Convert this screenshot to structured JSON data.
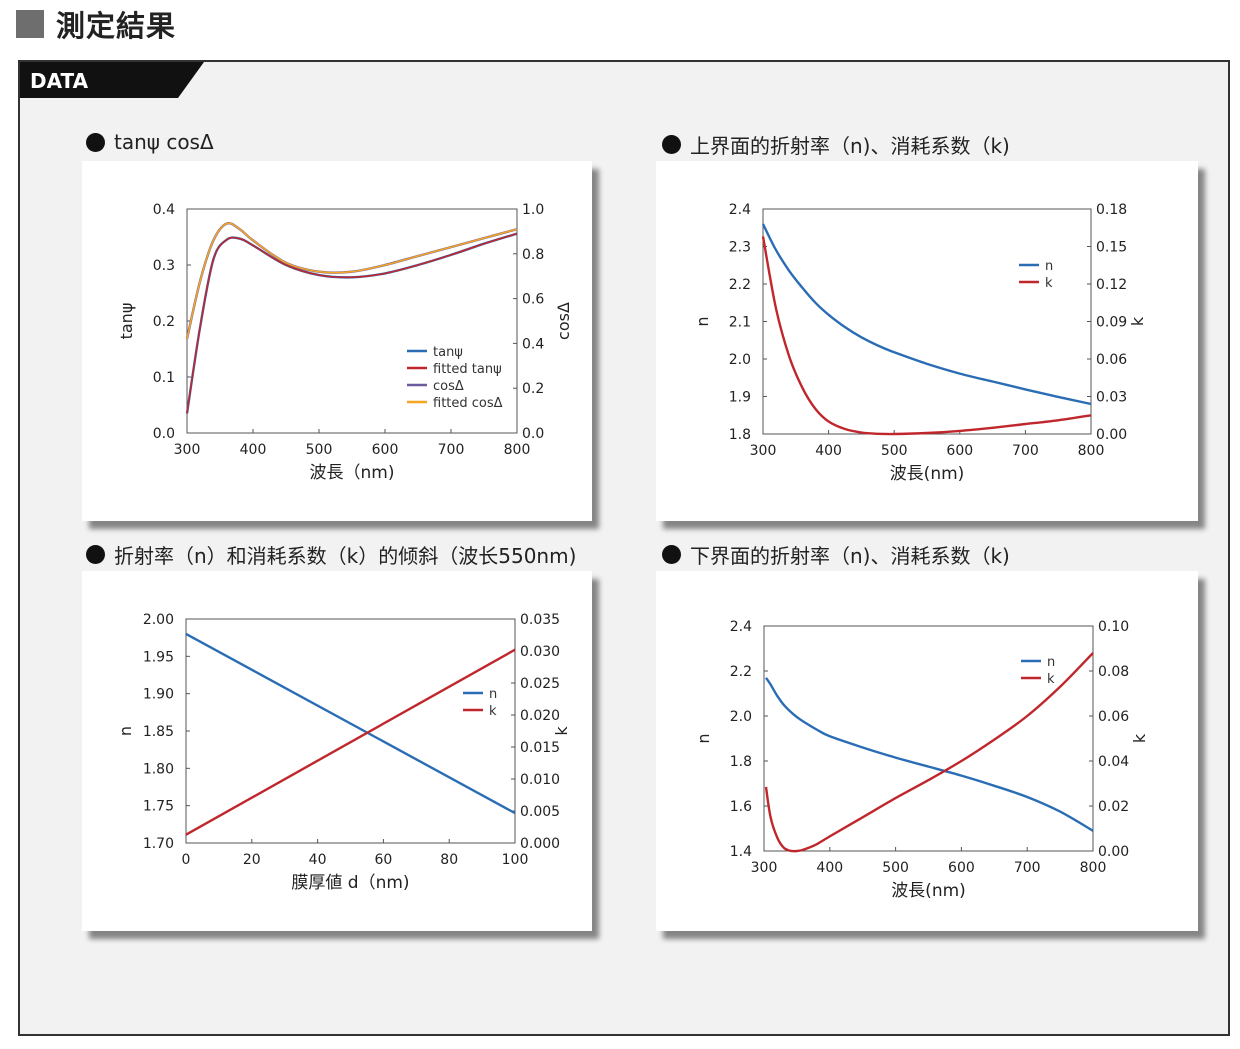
{
  "page": {
    "title": "測定結果",
    "frame_label": "DATA"
  },
  "colors": {
    "blue": "#2a6db5",
    "red": "#c0272d",
    "purple": "#6b5b9e",
    "orange": "#f5a623",
    "tab": "#111111"
  },
  "panels": [
    {
      "title": "tanψ cosΔ"
    },
    {
      "title": "上界面的折射率（n)、消耗系数（k)"
    },
    {
      "title": "折射率（n）和消耗系数（k）的倾斜（波长550nm)"
    },
    {
      "title": "下界面的折射率（n)、消耗系数（k)"
    }
  ],
  "chart_data": [
    {
      "type": "line",
      "xlabel": "波長（nm)",
      "ylabel_left": "tanψ",
      "ylabel_right": "cosΔ",
      "xlim": [
        300,
        800
      ],
      "ylim_left": [
        0,
        0.4
      ],
      "ylim_right": [
        0,
        1.0
      ],
      "xticks": [
        "300",
        "400",
        "500",
        "600",
        "700",
        "800"
      ],
      "yticks_left": [
        "0.0",
        "0.1",
        "0.2",
        "0.3",
        "0.4"
      ],
      "yticks_right": [
        "0.0",
        "0.2",
        "0.4",
        "0.6",
        "0.8",
        "1.0"
      ],
      "legend_position": "lower-right",
      "x": [
        300,
        320,
        340,
        360,
        380,
        400,
        450,
        500,
        550,
        600,
        650,
        700,
        750,
        800
      ],
      "series": [
        {
          "name": "tanψ",
          "axis": "left",
          "color": "#2a6db5",
          "values": [
            0.035,
            0.19,
            0.31,
            0.345,
            0.347,
            0.335,
            0.3,
            0.282,
            0.278,
            0.285,
            0.3,
            0.318,
            0.338,
            0.356
          ]
        },
        {
          "name": "fitted tanψ",
          "axis": "left",
          "color": "#c0272d",
          "values": [
            0.035,
            0.19,
            0.31,
            0.345,
            0.347,
            0.335,
            0.3,
            0.282,
            0.278,
            0.285,
            0.3,
            0.318,
            0.338,
            0.356
          ]
        },
        {
          "name": "cosΔ",
          "axis": "right",
          "color": "#6b5b9e",
          "values": [
            0.42,
            0.68,
            0.86,
            0.935,
            0.91,
            0.86,
            0.76,
            0.72,
            0.72,
            0.75,
            0.79,
            0.83,
            0.87,
            0.91
          ]
        },
        {
          "name": "fitted cosΔ",
          "axis": "right",
          "color": "#f5a623",
          "values": [
            0.42,
            0.68,
            0.86,
            0.935,
            0.91,
            0.86,
            0.76,
            0.72,
            0.72,
            0.75,
            0.79,
            0.83,
            0.87,
            0.91
          ]
        }
      ]
    },
    {
      "type": "line",
      "xlabel": "波長(nm)",
      "ylabel_left": "n",
      "ylabel_right": "k",
      "xlim": [
        300,
        800
      ],
      "ylim_left": [
        1.8,
        2.4
      ],
      "ylim_right": [
        0,
        0.18
      ],
      "xticks": [
        "300",
        "400",
        "500",
        "600",
        "700",
        "800"
      ],
      "yticks_left": [
        "1.8",
        "1.9",
        "2.0",
        "2.1",
        "2.2",
        "2.3",
        "2.4"
      ],
      "yticks_right": [
        "0.00",
        "0.03",
        "0.06",
        "0.09",
        "0.12",
        "0.15",
        "0.18"
      ],
      "legend_position": "top-right",
      "x": [
        300,
        320,
        340,
        360,
        380,
        400,
        425,
        450,
        475,
        500,
        550,
        600,
        650,
        700,
        750,
        800
      ],
      "series": [
        {
          "name": "n",
          "axis": "left",
          "color": "#2a6db5",
          "values": [
            2.36,
            2.29,
            2.235,
            2.19,
            2.15,
            2.118,
            2.085,
            2.058,
            2.036,
            2.018,
            1.987,
            1.961,
            1.94,
            1.919,
            1.899,
            1.88
          ]
        },
        {
          "name": "k",
          "axis": "right",
          "color": "#c0272d",
          "values": [
            0.158,
            0.1,
            0.062,
            0.037,
            0.02,
            0.01,
            0.004,
            0.0012,
            0.0002,
            0.0,
            0.0008,
            0.0025,
            0.005,
            0.008,
            0.011,
            0.015
          ]
        }
      ]
    },
    {
      "type": "line",
      "xlabel": "膜厚値 d（nm)",
      "ylabel_left": "n",
      "ylabel_right": "k",
      "xlim": [
        0,
        100
      ],
      "ylim_left": [
        1.7,
        2.0
      ],
      "ylim_right": [
        0,
        0.035
      ],
      "xticks": [
        "0",
        "20",
        "40",
        "60",
        "80",
        "100"
      ],
      "yticks_left": [
        "1.70",
        "1.75",
        "1.80",
        "1.85",
        "1.90",
        "1.95",
        "2.00"
      ],
      "yticks_right": [
        "0.000",
        "0.005",
        "0.010",
        "0.015",
        "0.020",
        "0.025",
        "0.030",
        "0.035"
      ],
      "legend_position": "middle-right",
      "x": [
        0,
        100
      ],
      "series": [
        {
          "name": "n",
          "axis": "left",
          "color": "#2a6db5",
          "values": [
            1.98,
            1.74
          ]
        },
        {
          "name": "k",
          "axis": "right",
          "color": "#c0272d",
          "values": [
            0.0013,
            0.0302
          ]
        }
      ]
    },
    {
      "type": "line",
      "xlabel": "波長(nm)",
      "ylabel_left": "n",
      "ylabel_right": "k",
      "xlim": [
        300,
        800
      ],
      "ylim_left": [
        1.4,
        2.4
      ],
      "ylim_right": [
        0,
        0.1
      ],
      "xticks": [
        "300",
        "400",
        "500",
        "600",
        "700",
        "800"
      ],
      "yticks_left": [
        "1.4",
        "1.6",
        "1.8",
        "2.0",
        "2.2",
        "2.4"
      ],
      "yticks_right": [
        "0.00",
        "0.02",
        "0.04",
        "0.06",
        "0.08",
        "0.10"
      ],
      "legend_position": "top-right",
      "x": [
        303,
        310,
        320,
        330,
        340,
        350,
        360,
        380,
        400,
        450,
        500,
        550,
        600,
        650,
        700,
        750,
        800
      ],
      "series": [
        {
          "name": "n",
          "axis": "left",
          "color": "#2a6db5",
          "values": [
            2.17,
            2.14,
            2.09,
            2.05,
            2.02,
            1.995,
            1.975,
            1.94,
            1.91,
            1.86,
            1.815,
            1.775,
            1.735,
            1.69,
            1.64,
            1.575,
            1.49
          ]
        },
        {
          "name": "k",
          "axis": "right",
          "color": "#c0272d",
          "values": [
            0.0285,
            0.015,
            0.006,
            0.0015,
            0.0001,
            0.0,
            0.0006,
            0.003,
            0.0065,
            0.015,
            0.0235,
            0.0315,
            0.04,
            0.0495,
            0.06,
            0.073,
            0.088
          ]
        }
      ]
    }
  ]
}
